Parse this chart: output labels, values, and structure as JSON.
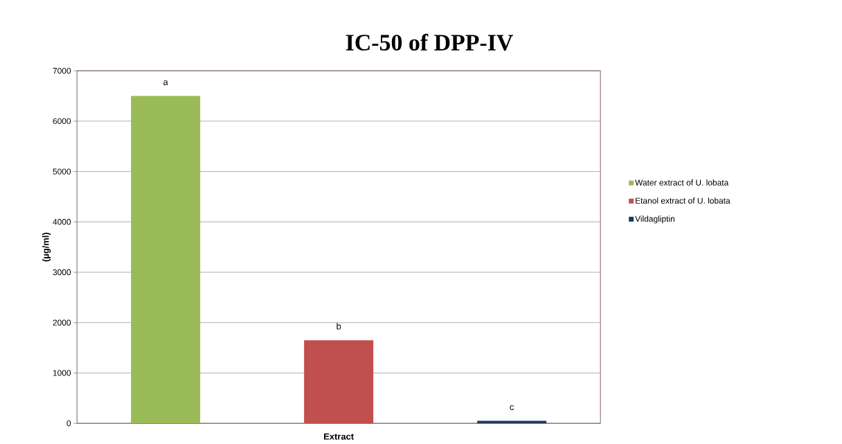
{
  "chart_data": {
    "type": "bar",
    "title": "IC-50 of DPP-IV",
    "xlabel": "Extract",
    "ylabel": "(µg/ml)",
    "categories": [
      null
    ],
    "series": [
      {
        "name": "Water extract of U. lobata",
        "color": "#9bbb59",
        "values": [
          6500
        ]
      },
      {
        "name": "Etanol extract of U. lobata",
        "color": "#c0504d",
        "values": [
          1650
        ]
      },
      {
        "name": "Vildagliptin",
        "color": "#1f3864",
        "values": [
          50
        ]
      }
    ],
    "ylim": [
      0,
      7000
    ],
    "yticks": [
      0,
      1000,
      2000,
      3000,
      4000,
      5000,
      6000,
      7000
    ],
    "grid": "y",
    "legend": "right",
    "annotations": [
      "a",
      "b",
      "c"
    ]
  }
}
